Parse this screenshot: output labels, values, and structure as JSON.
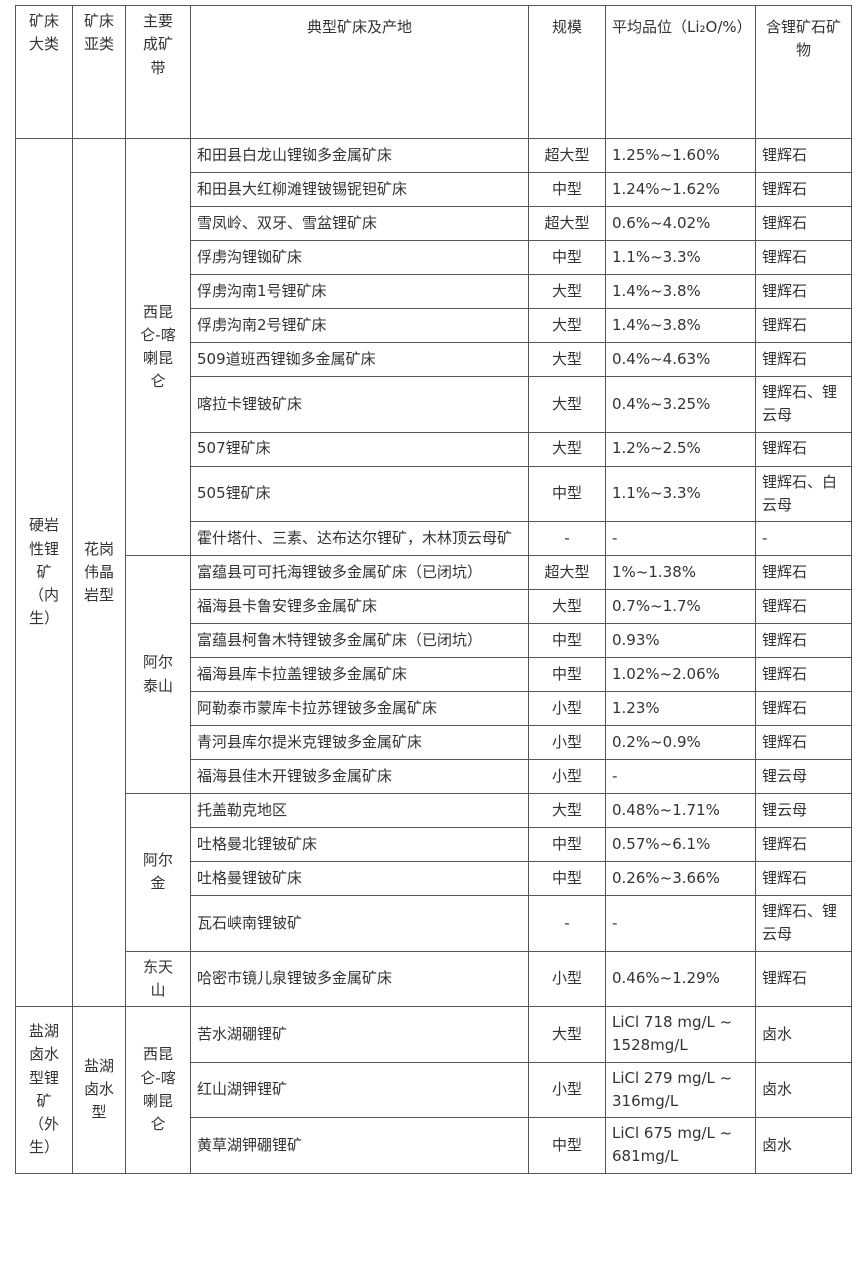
{
  "table": {
    "header": [
      "矿床大类",
      "矿床亚类",
      "主要成矿带",
      "典型矿床及产地",
      "规模",
      "平均品位（Li₂O/%）",
      "含锂矿石矿物"
    ],
    "groups": [
      {
        "class": "硬岩性锂矿（内生）",
        "subclasses": [
          {
            "name": "花岗伟晶岩型",
            "belts": [
              {
                "name": "西昆仑-喀喇昆仑",
                "rows": [
                  [
                    "和田县白龙山锂铷多金属矿床",
                    "超大型",
                    "1.25%~1.60%",
                    "锂辉石"
                  ],
                  [
                    "和田县大红柳滩锂铍锡铌钽矿床",
                    "中型",
                    "1.24%~1.62%",
                    "锂辉石"
                  ],
                  [
                    "雪凤岭、双牙、雪盆锂矿床",
                    "超大型",
                    "0.6%~4.02%",
                    "锂辉石"
                  ],
                  [
                    "俘虏沟锂铷矿床",
                    "中型",
                    "1.1%~3.3%",
                    "锂辉石"
                  ],
                  [
                    "俘虏沟南1号锂矿床",
                    "大型",
                    "1.4%~3.8%",
                    "锂辉石"
                  ],
                  [
                    "俘虏沟南2号锂矿床",
                    "大型",
                    "1.4%~3.8%",
                    "锂辉石"
                  ],
                  [
                    "509道班西锂铷多金属矿床",
                    "大型",
                    "0.4%~4.63%",
                    "锂辉石"
                  ],
                  [
                    "喀拉卡锂铍矿床",
                    "大型",
                    "0.4%~3.25%",
                    "锂辉石、锂云母"
                  ],
                  [
                    "507锂矿床",
                    "大型",
                    "1.2%~2.5%",
                    "锂辉石"
                  ],
                  [
                    "505锂矿床",
                    "中型",
                    "1.1%~3.3%",
                    "锂辉石、白云母"
                  ],
                  [
                    "霍什塔什、三素、达布达尔锂矿，木林顶云母矿",
                    "-",
                    "-",
                    "-"
                  ]
                ]
              },
              {
                "name": "阿尔泰山",
                "rows": [
                  [
                    "富蕴县可可托海锂铍多金属矿床（已闭坑）",
                    "超大型",
                    "1%~1.38%",
                    "锂辉石"
                  ],
                  [
                    "福海县卡鲁安锂多金属矿床",
                    "大型",
                    "0.7%~1.7%",
                    "锂辉石"
                  ],
                  [
                    "富蕴县柯鲁木特锂铍多金属矿床（已闭坑）",
                    "中型",
                    "0.93%",
                    "锂辉石"
                  ],
                  [
                    "福海县库卡拉盖锂铍多金属矿床",
                    "中型",
                    "1.02%~2.06%",
                    "锂辉石"
                  ],
                  [
                    "阿勒泰市蒙库卡拉苏锂铍多金属矿床",
                    "小型",
                    "1.23%",
                    "锂辉石"
                  ],
                  [
                    "青河县库尔提米克锂铍多金属矿床",
                    "小型",
                    "0.2%~0.9%",
                    "锂辉石"
                  ],
                  [
                    "福海县佳木开锂铍多金属矿床",
                    "小型",
                    "-",
                    "锂云母"
                  ]
                ]
              },
              {
                "name": "阿尔金",
                "rows": [
                  [
                    "托盖勒克地区",
                    "大型",
                    "0.48%~1.71%",
                    "锂云母"
                  ],
                  [
                    "吐格曼北锂铍矿床",
                    "中型",
                    "0.57%~6.1%",
                    "锂辉石"
                  ],
                  [
                    "吐格曼锂铍矿床",
                    "中型",
                    "0.26%~3.66%",
                    "锂辉石"
                  ],
                  [
                    "瓦石峡南锂铍矿",
                    "-",
                    "-",
                    "锂辉石、锂云母"
                  ]
                ]
              },
              {
                "name": "东天山",
                "rows": [
                  [
                    "哈密市镜儿泉锂铍多金属矿床",
                    "小型",
                    "0.46%~1.29%",
                    "锂辉石"
                  ]
                ]
              }
            ]
          }
        ]
      },
      {
        "class": "盐湖卤水型锂矿（外生）",
        "subclasses": [
          {
            "name": "盐湖卤水型",
            "belts": [
              {
                "name": "西昆仑-喀喇昆仑",
                "rows": [
                  [
                    "苦水湖硼锂矿",
                    "大型",
                    "LiCl 718 mg/L ~ 1528mg/L",
                    "卤水"
                  ],
                  [
                    "红山湖钾锂矿",
                    "小型",
                    "LiCl 279 mg/L ~ 316mg/L",
                    "卤水"
                  ],
                  [
                    "黄草湖钾硼锂矿",
                    "中型",
                    "LiCl 675 mg/L ~ 681mg/L",
                    "卤水"
                  ]
                ]
              }
            ]
          }
        ]
      }
    ]
  }
}
